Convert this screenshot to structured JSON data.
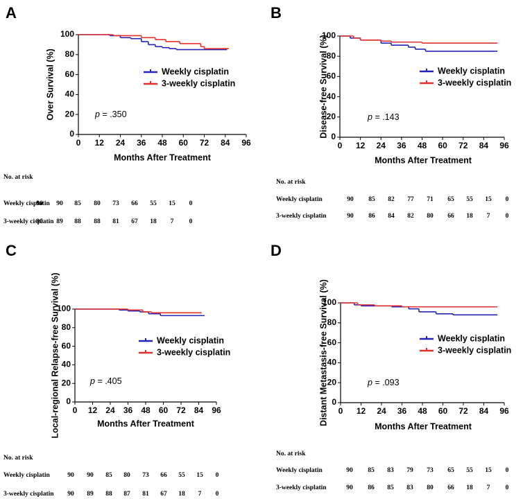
{
  "chart_data": [
    {
      "type": "step",
      "title": "A",
      "x_label": "Months After Treatment",
      "y_label": "Over Survival (%)",
      "xlim": [
        0,
        96
      ],
      "xticks": [
        0,
        12,
        24,
        36,
        48,
        60,
        72,
        84,
        96
      ],
      "ylim": [
        0,
        100
      ],
      "yticks": [
        0,
        20,
        40,
        60,
        80,
        100
      ],
      "grid": false,
      "annotation": {
        "italic": "p",
        "text": "= .350"
      },
      "series": [
        {
          "name": "Weekly cisplatin",
          "color": "#2323b8",
          "x": [
            0,
            18,
            24,
            30,
            36,
            40,
            44,
            48,
            52,
            56,
            85
          ],
          "values": [
            100,
            99,
            97,
            96,
            93,
            90,
            88,
            87,
            86,
            85,
            85
          ]
        },
        {
          "name": "3-weekly cisplatin",
          "color": "#e3302c",
          "x": [
            0,
            20,
            36,
            44,
            50,
            58,
            70,
            72,
            86
          ],
          "values": [
            100,
            99,
            97,
            95,
            93,
            91,
            88,
            86,
            86
          ]
        }
      ],
      "risk_table": {
        "title": "No. at risk",
        "rows": [
          {
            "name": "Weekly cisplatin",
            "values": [
              "90",
              "90",
              "85",
              "80",
              "73",
              "66",
              "55",
              "15",
              "0"
            ]
          },
          {
            "name": "3-weekly cisplatin",
            "values": [
              "90",
              "89",
              "88",
              "88",
              "81",
              "67",
              "18",
              "7",
              "0"
            ]
          }
        ]
      }
    },
    {
      "type": "step",
      "title": "B",
      "x_label": "Months After Treatment",
      "y_label": "Disease-free Survival (%)",
      "xlim": [
        0,
        96
      ],
      "xticks": [
        0,
        12,
        24,
        36,
        48,
        60,
        72,
        84,
        96
      ],
      "ylim": [
        0,
        100
      ],
      "yticks": [
        0,
        20,
        40,
        60,
        80,
        100
      ],
      "grid": false,
      "annotation": {
        "italic": "p",
        "text": "= .143"
      },
      "series": [
        {
          "name": "Weekly cisplatin",
          "color": "#2323b8",
          "x": [
            0,
            6,
            12,
            24,
            30,
            40,
            44,
            50,
            92
          ],
          "values": [
            100,
            98,
            96,
            93,
            91,
            89,
            87,
            85,
            85
          ]
        },
        {
          "name": "3-weekly cisplatin",
          "color": "#e3302c",
          "x": [
            0,
            8,
            12,
            24,
            30,
            48,
            92
          ],
          "values": [
            100,
            98,
            96,
            95,
            94,
            93,
            93
          ]
        }
      ],
      "risk_table": {
        "title": "No. at risk",
        "rows": [
          {
            "name": "Weekly cisplatin",
            "values": [
              "90",
              "85",
              "82",
              "77",
              "71",
              "65",
              "55",
              "15",
              "0"
            ]
          },
          {
            "name": "3-weekly cisplatin",
            "values": [
              "90",
              "86",
              "84",
              "82",
              "80",
              "66",
              "18",
              "7",
              "0"
            ]
          }
        ]
      }
    },
    {
      "type": "step",
      "title": "C",
      "x_label": "Months After Treatment",
      "y_label": "Local-regional Relapse-free Survival (%)",
      "xlim": [
        0,
        96
      ],
      "xticks": [
        0,
        12,
        24,
        36,
        48,
        60,
        72,
        84,
        96
      ],
      "ylim": [
        0,
        100
      ],
      "yticks": [
        0,
        20,
        40,
        60,
        80,
        100
      ],
      "grid": false,
      "annotation": {
        "italic": "p",
        "text": "= .405"
      },
      "series": [
        {
          "name": "Weekly cisplatin",
          "color": "#2323b8",
          "x": [
            0,
            30,
            36,
            44,
            50,
            58,
            88
          ],
          "values": [
            100,
            99,
            98,
            97,
            95,
            93,
            93
          ]
        },
        {
          "name": "3-weekly cisplatin",
          "color": "#e3302c",
          "x": [
            0,
            36,
            46,
            52,
            86
          ],
          "values": [
            100,
            99,
            97,
            96,
            96
          ]
        }
      ],
      "risk_table": {
        "title": "No. at risk",
        "rows": [
          {
            "name": "Weekly cisplatin",
            "values": [
              "90",
              "90",
              "85",
              "80",
              "73",
              "66",
              "55",
              "15",
              "0"
            ]
          },
          {
            "name": "3-weekly cisplatin",
            "values": [
              "90",
              "89",
              "88",
              "87",
              "81",
              "67",
              "18",
              "7",
              "0"
            ]
          }
        ]
      }
    },
    {
      "type": "step",
      "title": "D",
      "x_label": "Months After Treatment",
      "y_label": "Distant Metastasis-free Survival (%)",
      "xlim": [
        0,
        96
      ],
      "xticks": [
        0,
        12,
        24,
        36,
        48,
        60,
        72,
        84,
        96
      ],
      "ylim": [
        0,
        100
      ],
      "yticks": [
        0,
        20,
        40,
        60,
        80,
        100
      ],
      "grid": false,
      "annotation": {
        "italic": "p",
        "text": "= .093"
      },
      "series": [
        {
          "name": "Weekly cisplatin",
          "color": "#2323b8",
          "x": [
            0,
            8,
            12,
            30,
            40,
            46,
            56,
            66,
            92
          ],
          "values": [
            100,
            98,
            97,
            96,
            94,
            91,
            89,
            88,
            88
          ]
        },
        {
          "name": "3-weekly cisplatin",
          "color": "#e3302c",
          "x": [
            0,
            10,
            20,
            36,
            92
          ],
          "values": [
            100,
            98,
            97,
            96,
            96
          ]
        }
      ],
      "risk_table": {
        "title": "No. at risk",
        "rows": [
          {
            "name": "Weekly cisplatin",
            "values": [
              "90",
              "85",
              "83",
              "79",
              "73",
              "65",
              "55",
              "15",
              "0"
            ]
          },
          {
            "name": "3-weekly cisplatin",
            "values": [
              "90",
              "86",
              "85",
              "83",
              "80",
              "66",
              "18",
              "7",
              "0"
            ]
          }
        ]
      }
    }
  ]
}
